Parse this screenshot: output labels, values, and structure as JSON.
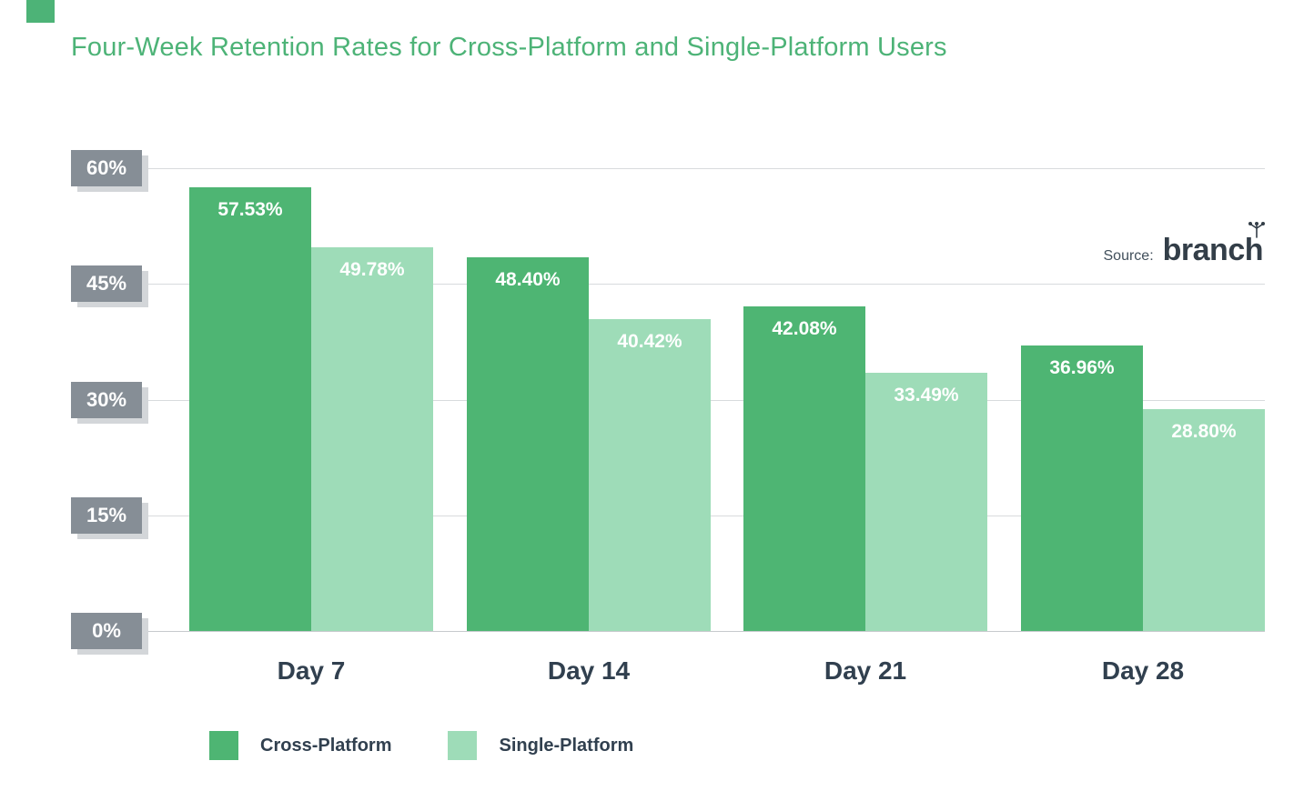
{
  "page": {
    "title": "Four-Week Retention Rates for Cross-Platform and Single-Platform Users"
  },
  "source": {
    "label": "Source:",
    "brand": "branch"
  },
  "legend": {
    "entries": [
      "Cross-Platform",
      "Single-Platform"
    ]
  },
  "chart_data": {
    "type": "bar",
    "title": "Four-Week Retention Rates for Cross-Platform and Single-Platform Users",
    "categories": [
      "Day 7",
      "Day 14",
      "Day 21",
      "Day 28"
    ],
    "series": [
      {
        "name": "Cross-Platform",
        "color": "#4eb573",
        "values": [
          57.53,
          48.4,
          42.08,
          36.96
        ],
        "labels": [
          "57.53%",
          "48.40%",
          "42.08%",
          "36.96%"
        ]
      },
      {
        "name": "Single-Platform",
        "color": "#9edcb8",
        "values": [
          49.78,
          40.42,
          33.49,
          28.8
        ],
        "labels": [
          "49.78%",
          "40.42%",
          "33.49%",
          "28.80%"
        ]
      }
    ],
    "value_suffix": "%",
    "ylim": [
      0,
      60
    ],
    "yticks": [
      0,
      15,
      30,
      45,
      60
    ],
    "ytick_labels": [
      "0%",
      "15%",
      "30%",
      "45%",
      "60%"
    ],
    "grid": true,
    "legend_position": "bottom"
  },
  "colors": {
    "title": "#4db377",
    "ytick_badge": "#868e96",
    "gridline": "#d8dbdd",
    "axis_text": "#31404f",
    "bar_label": "#ffffff"
  }
}
